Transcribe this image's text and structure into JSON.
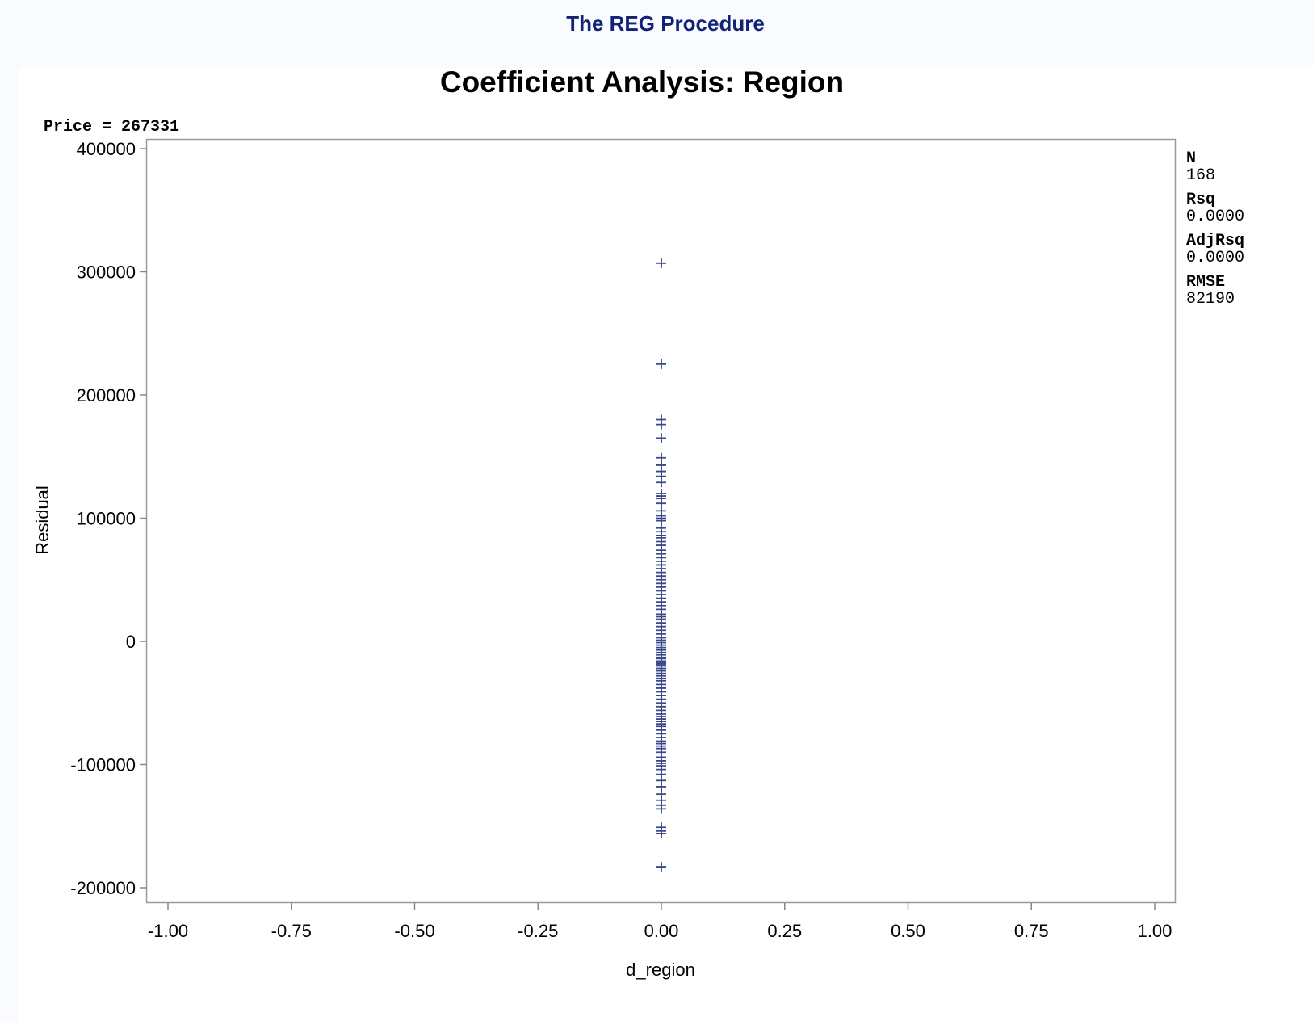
{
  "page": {
    "procedure_title": "The REG Procedure"
  },
  "chart_data": {
    "type": "scatter",
    "title": "Coefficient Analysis: Region",
    "equation": "Price = 267331",
    "xlabel": "d_region",
    "ylabel": "Residual",
    "xlim": [
      -1.0,
      1.0
    ],
    "ylim": [
      -200000,
      400000
    ],
    "x_ticks": [
      "-1.00",
      "-0.75",
      "-0.50",
      "-0.25",
      "0.00",
      "0.25",
      "0.50",
      "0.75",
      "1.00"
    ],
    "y_ticks": [
      "400000",
      "300000",
      "200000",
      "100000",
      "0",
      "-100000",
      "-200000"
    ],
    "grid": false,
    "marker": "plus",
    "marker_color": "#3b4a8c",
    "stats": [
      {
        "label": "N",
        "value": "168"
      },
      {
        "label": "Rsq",
        "value": "0.0000"
      },
      {
        "label": "AdjRsq",
        "value": "0.0000"
      },
      {
        "label": "RMSE",
        "value": "82190"
      }
    ],
    "points": {
      "x": 0.0,
      "y": [
        307000,
        225000,
        180000,
        176000,
        165000,
        149000,
        143000,
        138000,
        134000,
        129000,
        120000,
        118000,
        116000,
        112000,
        106000,
        102000,
        100000,
        98000,
        92000,
        89000,
        86000,
        84000,
        81000,
        78000,
        74000,
        71000,
        68000,
        65000,
        62000,
        59000,
        56000,
        53000,
        50000,
        47000,
        44000,
        41000,
        38000,
        35000,
        32000,
        29000,
        26000,
        22000,
        20000,
        18000,
        15000,
        12000,
        9000,
        6000,
        3000,
        1000,
        -1000,
        -3000,
        -5000,
        -7000,
        -9000,
        -11000,
        -13000,
        -14000,
        -16000,
        -17000,
        -18000,
        -19000,
        -20000,
        -22000,
        -24000,
        -26000,
        -28000,
        -30000,
        -32000,
        -35000,
        -38000,
        -41000,
        -44000,
        -47000,
        -50000,
        -53000,
        -56000,
        -59000,
        -61000,
        -63000,
        -65000,
        -67000,
        -69000,
        -72000,
        -75000,
        -78000,
        -81000,
        -83000,
        -85000,
        -87000,
        -90000,
        -94000,
        -97000,
        -99000,
        -101000,
        -104000,
        -108000,
        -113000,
        -118000,
        -124000,
        -129000,
        -133000,
        -136000,
        -151000,
        -154000,
        -156000,
        -183000
      ]
    }
  }
}
